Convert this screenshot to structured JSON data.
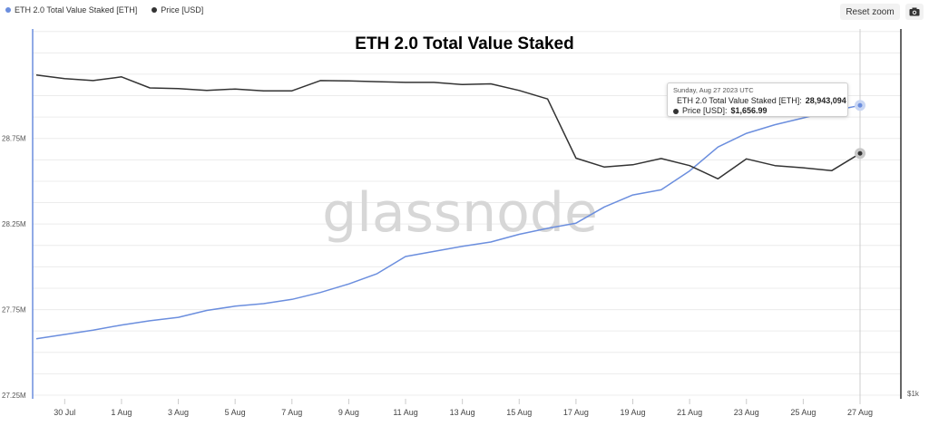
{
  "legend": {
    "items": [
      {
        "label": "ETH 2.0 Total Value Staked [ETH]",
        "color": "#6b8ede"
      },
      {
        "label": "Price [USD]",
        "color": "#333333"
      }
    ]
  },
  "controls": {
    "reset_zoom_label": "Reset zoom",
    "export_icon": "camera-icon"
  },
  "watermark": "glassnode",
  "tooltip": {
    "date": "Sunday, Aug 27 2023 UTC",
    "rows": [
      {
        "label": "ETH 2.0 Total Value Staked [ETH]:",
        "value": "28,943,094",
        "color": "#6b8ede"
      },
      {
        "label": "Price [USD]:",
        "value": "$1,656.99",
        "color": "#333333"
      }
    ]
  },
  "chart_data": {
    "type": "line",
    "title": "ETH 2.0 Total Value Staked",
    "x": [
      "29 Jul",
      "30 Jul",
      "31 Jul",
      "1 Aug",
      "2 Aug",
      "3 Aug",
      "4 Aug",
      "5 Aug",
      "6 Aug",
      "7 Aug",
      "8 Aug",
      "9 Aug",
      "10 Aug",
      "11 Aug",
      "12 Aug",
      "13 Aug",
      "14 Aug",
      "15 Aug",
      "16 Aug",
      "17 Aug",
      "18 Aug",
      "19 Aug",
      "20 Aug",
      "21 Aug",
      "22 Aug",
      "23 Aug",
      "24 Aug",
      "25 Aug",
      "26 Aug",
      "27 Aug"
    ],
    "x_tick_labels": [
      "30 Jul",
      "1 Aug",
      "3 Aug",
      "5 Aug",
      "7 Aug",
      "9 Aug",
      "11 Aug",
      "13 Aug",
      "15 Aug",
      "17 Aug",
      "19 Aug",
      "21 Aug",
      "23 Aug",
      "25 Aug",
      "27 Aug"
    ],
    "y_left": {
      "ticks": [
        "27.25M",
        "27.75M",
        "28.25M",
        "28.75M"
      ],
      "range": [
        27250000,
        29400000
      ]
    },
    "y_right": {
      "ticks": [
        "$1k"
      ],
      "range": [
        1000,
        2000
      ]
    },
    "legend_position": "top-left",
    "grid": true,
    "series": [
      {
        "name": "ETH 2.0 Total Value Staked [ETH]",
        "axis": "left",
        "color": "#6b8ede",
        "values": [
          27580000,
          27605000,
          27630000,
          27660000,
          27685000,
          27705000,
          27745000,
          27770000,
          27785000,
          27810000,
          27850000,
          27900000,
          27960000,
          28060000,
          28090000,
          28120000,
          28145000,
          28190000,
          28225000,
          28255000,
          28350000,
          28420000,
          28450000,
          28560000,
          28700000,
          28780000,
          28830000,
          28870000,
          28910000,
          28943094
        ]
      },
      {
        "name": "Price [USD]",
        "axis": "right",
        "color": "#333333",
        "values": [
          1870,
          1860,
          1855,
          1865,
          1835,
          1833,
          1828,
          1832,
          1827,
          1827,
          1855,
          1854,
          1852,
          1850,
          1850,
          1844,
          1846,
          1828,
          1805,
          1644,
          1620,
          1626,
          1643,
          1624,
          1588,
          1642,
          1624,
          1618,
          1610,
          1656.99
        ]
      }
    ]
  }
}
